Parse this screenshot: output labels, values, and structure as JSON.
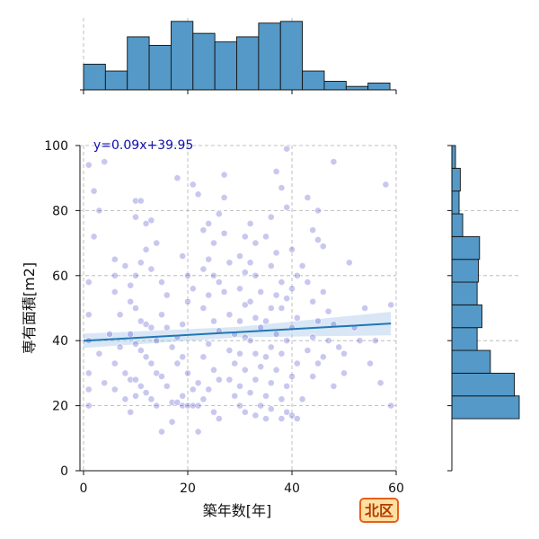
{
  "chart_data": {
    "type": "scatter",
    "xlabel": "築年数[年]",
    "ylabel": "専有面積[m2]",
    "xlim": [
      -1,
      60
    ],
    "ylim": [
      0,
      100
    ],
    "xticks": [
      0,
      20,
      40,
      60
    ],
    "yticks": [
      0,
      20,
      40,
      60,
      80,
      100
    ],
    "grid": true,
    "annotation": "y=0.09x+39.95",
    "badge": "北区",
    "colors": {
      "points": "#3b3bc4",
      "regression": "#1f77b4",
      "band": "#a9c8e8",
      "hist": "#5499c7",
      "badge_fill": "#ffe0a0",
      "badge_border": "#e8601c"
    },
    "regression": {
      "slope": 0.09,
      "intercept": 39.95,
      "x_range": [
        0,
        59
      ],
      "ci_half_width": [
        2.2,
        1.6,
        3.6
      ]
    },
    "top_histogram": {
      "bin_edges": [
        0,
        4.2,
        8.4,
        12.6,
        16.8,
        21.0,
        25.2,
        29.4,
        33.6,
        37.8,
        42.0,
        46.2,
        50.4,
        54.6,
        58.8
      ],
      "counts": [
        15,
        11,
        31,
        26,
        40,
        33,
        28,
        31,
        39,
        40,
        11,
        5,
        2,
        4
      ]
    },
    "right_histogram": {
      "bin_edges": [
        16,
        23,
        30,
        37,
        44,
        51,
        58,
        65,
        72,
        79,
        86,
        93,
        100
      ],
      "counts": [
        56,
        52,
        32,
        21,
        25,
        21,
        22,
        23,
        9,
        6,
        7,
        3
      ]
    },
    "points": [
      [
        1,
        94
      ],
      [
        4,
        95
      ],
      [
        2,
        86
      ],
      [
        3,
        80
      ],
      [
        2,
        72
      ],
      [
        1,
        58
      ],
      [
        1,
        48
      ],
      [
        1,
        40
      ],
      [
        1,
        30
      ],
      [
        1,
        25
      ],
      [
        1,
        20
      ],
      [
        6,
        33
      ],
      [
        4,
        27
      ],
      [
        5,
        42
      ],
      [
        7,
        38
      ],
      [
        3,
        36
      ],
      [
        6,
        25
      ],
      [
        8,
        30
      ],
      [
        9,
        28
      ],
      [
        8,
        22
      ],
      [
        7,
        48
      ],
      [
        6,
        55
      ],
      [
        6,
        60
      ],
      [
        6,
        65
      ],
      [
        8,
        63
      ],
      [
        10,
        83
      ],
      [
        11,
        83
      ],
      [
        12,
        76
      ],
      [
        10,
        78
      ],
      [
        13,
        77
      ],
      [
        14,
        70
      ],
      [
        12,
        68
      ],
      [
        11,
        64
      ],
      [
        13,
        62
      ],
      [
        10,
        60
      ],
      [
        9,
        57
      ],
      [
        9,
        52
      ],
      [
        10,
        50
      ],
      [
        11,
        46
      ],
      [
        12,
        45
      ],
      [
        13,
        44
      ],
      [
        14,
        40
      ],
      [
        9,
        42
      ],
      [
        10,
        39
      ],
      [
        11,
        37
      ],
      [
        12,
        35
      ],
      [
        13,
        33
      ],
      [
        14,
        30
      ],
      [
        10,
        28
      ],
      [
        11,
        26
      ],
      [
        12,
        24
      ],
      [
        13,
        22
      ],
      [
        14,
        20
      ],
      [
        9,
        18
      ],
      [
        10,
        23
      ],
      [
        15,
        58
      ],
      [
        16,
        54
      ],
      [
        15,
        48
      ],
      [
        16,
        44
      ],
      [
        17,
        38
      ],
      [
        18,
        33
      ],
      [
        15,
        29
      ],
      [
        16,
        26
      ],
      [
        17,
        21
      ],
      [
        18,
        21
      ],
      [
        19,
        20
      ],
      [
        20,
        20
      ],
      [
        21,
        20
      ],
      [
        22,
        20
      ],
      [
        19,
        23
      ],
      [
        21,
        25
      ],
      [
        22,
        27
      ],
      [
        20,
        30
      ],
      [
        19,
        35
      ],
      [
        18,
        41
      ],
      [
        19,
        45
      ],
      [
        20,
        52
      ],
      [
        21,
        56
      ],
      [
        20,
        60
      ],
      [
        19,
        66
      ],
      [
        18,
        90
      ],
      [
        21,
        88
      ],
      [
        22,
        85
      ],
      [
        23,
        74
      ],
      [
        24,
        76
      ],
      [
        25,
        70
      ],
      [
        24,
        65
      ],
      [
        23,
        62
      ],
      [
        25,
        60
      ],
      [
        26,
        58
      ],
      [
        24,
        54
      ],
      [
        23,
        50
      ],
      [
        25,
        46
      ],
      [
        26,
        43
      ],
      [
        24,
        39
      ],
      [
        23,
        35
      ],
      [
        25,
        31
      ],
      [
        26,
        28
      ],
      [
        24,
        25
      ],
      [
        23,
        22
      ],
      [
        25,
        18
      ],
      [
        26,
        16
      ],
      [
        27,
        55
      ],
      [
        28,
        64
      ],
      [
        27,
        73
      ],
      [
        26,
        79
      ],
      [
        27,
        84
      ],
      [
        27,
        91
      ],
      [
        28,
        48
      ],
      [
        29,
        42
      ],
      [
        28,
        37
      ],
      [
        29,
        33
      ],
      [
        28,
        28
      ],
      [
        29,
        23
      ],
      [
        30,
        20
      ],
      [
        31,
        18
      ],
      [
        30,
        26
      ],
      [
        31,
        31
      ],
      [
        30,
        36
      ],
      [
        31,
        41
      ],
      [
        30,
        46
      ],
      [
        31,
        51
      ],
      [
        30,
        56
      ],
      [
        31,
        61
      ],
      [
        30,
        66
      ],
      [
        31,
        72
      ],
      [
        32,
        76
      ],
      [
        33,
        70
      ],
      [
        32,
        64
      ],
      [
        33,
        60
      ],
      [
        34,
        55
      ],
      [
        32,
        52
      ],
      [
        33,
        47
      ],
      [
        34,
        44
      ],
      [
        32,
        40
      ],
      [
        33,
        36
      ],
      [
        34,
        32
      ],
      [
        33,
        28
      ],
      [
        32,
        24
      ],
      [
        34,
        20
      ],
      [
        33,
        17
      ],
      [
        35,
        16
      ],
      [
        36,
        19
      ],
      [
        35,
        23
      ],
      [
        36,
        27
      ],
      [
        37,
        31
      ],
      [
        35,
        35
      ],
      [
        36,
        38
      ],
      [
        37,
        42
      ],
      [
        35,
        46
      ],
      [
        36,
        50
      ],
      [
        37,
        54
      ],
      [
        38,
        58
      ],
      [
        36,
        63
      ],
      [
        37,
        67
      ],
      [
        35,
        72
      ],
      [
        36,
        78
      ],
      [
        37,
        92
      ],
      [
        38,
        87
      ],
      [
        39,
        81
      ],
      [
        39,
        99
      ],
      [
        38,
        16
      ],
      [
        39,
        18
      ],
      [
        40,
        17
      ],
      [
        41,
        16
      ],
      [
        38,
        22
      ],
      [
        39,
        26
      ],
      [
        40,
        29
      ],
      [
        41,
        33
      ],
      [
        38,
        36
      ],
      [
        39,
        40
      ],
      [
        40,
        44
      ],
      [
        41,
        47
      ],
      [
        38,
        50
      ],
      [
        39,
        53
      ],
      [
        40,
        56
      ],
      [
        41,
        60
      ],
      [
        42,
        63
      ],
      [
        40,
        68
      ],
      [
        43,
        58
      ],
      [
        44,
        52
      ],
      [
        45,
        46
      ],
      [
        44,
        41
      ],
      [
        43,
        37
      ],
      [
        45,
        33
      ],
      [
        44,
        29
      ],
      [
        46,
        35
      ],
      [
        47,
        49
      ],
      [
        46,
        55
      ],
      [
        45,
        80
      ],
      [
        48,
        95
      ],
      [
        47,
        40
      ],
      [
        48,
        45
      ],
      [
        49,
        38
      ],
      [
        50,
        36
      ],
      [
        51,
        64
      ],
      [
        52,
        44
      ],
      [
        53,
        40
      ],
      [
        54,
        50
      ],
      [
        56,
        40
      ],
      [
        55,
        33
      ],
      [
        57,
        27
      ],
      [
        58,
        88
      ],
      [
        59,
        51
      ],
      [
        59,
        20
      ],
      [
        50,
        30
      ],
      [
        48,
        26
      ],
      [
        42,
        22
      ],
      [
        43,
        84
      ],
      [
        44,
        74
      ],
      [
        45,
        71
      ],
      [
        46,
        69
      ],
      [
        22,
        12
      ],
      [
        17,
        15
      ],
      [
        15,
        12
      ]
    ]
  }
}
